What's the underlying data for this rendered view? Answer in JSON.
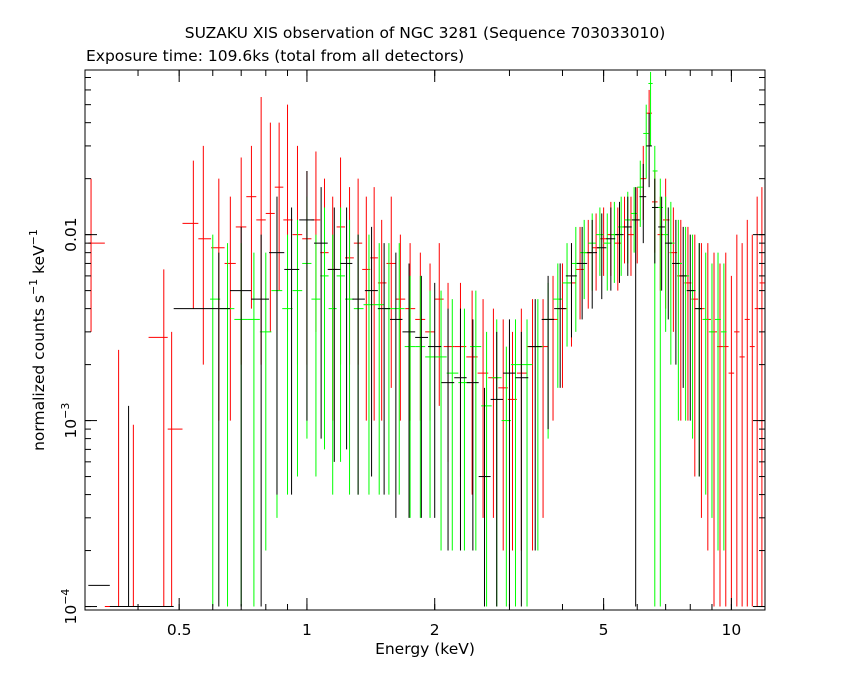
{
  "chart_data": {
    "type": "scatter",
    "title": "SUZAKU XIS observation of NGC 3281 (Sequence 703033010)",
    "subtitle": "Exposure time: 109.6ks (total from all detectors)",
    "xlabel": "Energy (keV)",
    "ylabel_main": "normalized counts s",
    "ylabel_exp1": "−1",
    "ylabel_mid": " keV",
    "ylabel_exp2": "−1",
    "x_scale": "log",
    "y_scale": "log",
    "xlim": [
      0.3,
      12.0
    ],
    "ylim": [
      9.58e-05,
      0.0768
    ],
    "x_ticks": [
      {
        "value": 0.5,
        "label": "0.5"
      },
      {
        "value": 1,
        "label": "1"
      },
      {
        "value": 2,
        "label": "2"
      },
      {
        "value": 5,
        "label": "5"
      },
      {
        "value": 10,
        "label": "10"
      }
    ],
    "y_ticks": [
      {
        "value": 0.0001,
        "base": "10",
        "exp": "−4",
        "label": ""
      },
      {
        "value": 0.001,
        "base": "10",
        "exp": "−3",
        "label": ""
      },
      {
        "value": 0.01,
        "base": "",
        "exp": "",
        "label": "0.01"
      }
    ],
    "grid": false,
    "legend": "none",
    "series": [
      {
        "color": "#ff0000",
        "points": [
          [
            0.31,
            0.009,
            0.02,
            0.003
          ],
          [
            0.36,
            0.0001,
            0.0024,
            0.0001
          ],
          [
            0.39,
            0.0001,
            0.00095,
            0.0001
          ],
          [
            0.46,
            0.0028,
            0.0065,
            0.0001
          ],
          [
            0.48,
            0.0009,
            0.003,
            0.0001
          ],
          [
            0.54,
            0.0115,
            0.025,
            0.004
          ],
          [
            0.57,
            0.0095,
            0.03,
            0.002
          ],
          [
            0.62,
            0.0085,
            0.02,
            0.001
          ],
          [
            0.66,
            0.007,
            0.016,
            0.001
          ],
          [
            0.7,
            0.011,
            0.026,
            0.002
          ],
          [
            0.74,
            0.016,
            0.03,
            0.004
          ],
          [
            0.78,
            0.012,
            0.055,
            0.002
          ],
          [
            0.82,
            0.013,
            0.04,
            0.003
          ],
          [
            0.86,
            0.018,
            0.04,
            0.005
          ],
          [
            0.9,
            0.012,
            0.05,
            0.003
          ],
          [
            0.95,
            0.01,
            0.03,
            0.002
          ],
          [
            1.0,
            0.0095,
            0.022,
            0.002
          ],
          [
            1.05,
            0.012,
            0.028,
            0.003
          ],
          [
            1.1,
            0.008,
            0.02,
            0.002
          ],
          [
            1.15,
            0.0065,
            0.016,
            0.001
          ],
          [
            1.2,
            0.011,
            0.026,
            0.002
          ],
          [
            1.26,
            0.0075,
            0.018,
            0.002
          ],
          [
            1.32,
            0.009,
            0.02,
            0.002
          ],
          [
            1.38,
            0.0065,
            0.016,
            0.001
          ],
          [
            1.44,
            0.0075,
            0.018,
            0.001
          ],
          [
            1.5,
            0.0055,
            0.012,
            0.001
          ],
          [
            1.58,
            0.007,
            0.016,
            0.0015
          ],
          [
            1.66,
            0.0045,
            0.01,
            0.001
          ],
          [
            1.75,
            0.004,
            0.009,
            0.001
          ],
          [
            1.85,
            0.0035,
            0.008,
            0.001
          ],
          [
            1.95,
            0.003,
            0.007,
            0.001
          ],
          [
            2.05,
            0.0045,
            0.009,
            0.0012
          ],
          [
            2.15,
            0.0025,
            0.0055,
            0.0006
          ],
          [
            2.3,
            0.0025,
            0.0055,
            0.0005
          ],
          [
            2.45,
            0.0022,
            0.005,
            0.0004
          ],
          [
            2.6,
            0.0018,
            0.0045,
            0.0003
          ],
          [
            2.75,
            0.0017,
            0.004,
            0.0003
          ],
          [
            2.9,
            0.0015,
            0.0035,
            0.0002
          ],
          [
            3.05,
            0.0013,
            0.003,
            0.0002
          ],
          [
            3.2,
            0.0018,
            0.004,
            0.0002
          ],
          [
            3.4,
            0.0025,
            0.0045,
            0.0002
          ],
          [
            3.6,
            0.0025,
            0.0045,
            0.0003
          ],
          [
            3.8,
            0.0035,
            0.006,
            0.001
          ],
          [
            4.0,
            0.004,
            0.007,
            0.0015
          ],
          [
            4.2,
            0.0055,
            0.009,
            0.0025
          ],
          [
            4.4,
            0.0065,
            0.011,
            0.0035
          ],
          [
            4.6,
            0.008,
            0.012,
            0.004
          ],
          [
            4.8,
            0.0085,
            0.013,
            0.005
          ],
          [
            5.0,
            0.0095,
            0.014,
            0.006
          ],
          [
            5.2,
            0.01,
            0.015,
            0.006
          ],
          [
            5.4,
            0.009,
            0.014,
            0.005
          ],
          [
            5.6,
            0.011,
            0.016,
            0.007
          ],
          [
            5.8,
            0.01,
            0.016,
            0.006
          ],
          [
            6.0,
            0.012,
            0.018,
            0.007
          ],
          [
            6.2,
            0.02,
            0.03,
            0.012
          ],
          [
            6.4,
            0.045,
            0.06,
            0.03
          ],
          [
            6.6,
            0.015,
            0.022,
            0.008
          ],
          [
            6.8,
            0.01,
            0.016,
            0.005
          ],
          [
            7.0,
            0.012,
            0.02,
            0.004
          ],
          [
            7.3,
            0.008,
            0.014,
            0.003
          ],
          [
            7.6,
            0.006,
            0.012,
            0.001
          ],
          [
            7.9,
            0.0055,
            0.011,
            0.001
          ],
          [
            8.2,
            0.0045,
            0.01,
            0.0005
          ],
          [
            8.5,
            0.004,
            0.009,
            0.0003
          ],
          [
            8.8,
            0.0035,
            0.009,
            0.0002
          ],
          [
            9.1,
            0.003,
            0.008,
            0.0001
          ],
          [
            9.4,
            0.0025,
            0.007,
            0.0001
          ],
          [
            9.7,
            0.0025,
            0.008,
            0.0001
          ],
          [
            10.0,
            0.0018,
            0.006,
            0.0001
          ],
          [
            10.3,
            0.003,
            0.01,
            0.0001
          ],
          [
            10.6,
            0.0022,
            0.009,
            0.0001
          ],
          [
            10.9,
            0.0035,
            0.012,
            0.0001
          ],
          [
            11.2,
            0.0025,
            0.01,
            0.0001
          ],
          [
            11.5,
            0.004,
            0.016,
            0.0001
          ],
          [
            11.8,
            0.0055,
            0.018,
            0.0001
          ]
        ]
      },
      {
        "color": "#00ff00",
        "points": [
          [
            0.6,
            0.0045,
            0.01,
            0.0001
          ],
          [
            0.65,
            0.004,
            0.009,
            0.0001
          ],
          [
            0.7,
            0.0035,
            0.009,
            0.0001
          ],
          [
            0.75,
            0.0035,
            0.008,
            0.0001
          ],
          [
            0.8,
            0.003,
            0.008,
            0.0002
          ],
          [
            0.85,
            0.005,
            0.012,
            0.0003
          ],
          [
            0.9,
            0.004,
            0.01,
            0.0004
          ],
          [
            0.95,
            0.005,
            0.012,
            0.0005
          ],
          [
            1.0,
            0.007,
            0.016,
            0.0008
          ],
          [
            1.05,
            0.0045,
            0.01,
            0.0005
          ],
          [
            1.1,
            0.006,
            0.014,
            0.0007
          ],
          [
            1.15,
            0.004,
            0.01,
            0.0004
          ],
          [
            1.2,
            0.006,
            0.014,
            0.0006
          ],
          [
            1.26,
            0.0045,
            0.012,
            0.0004
          ],
          [
            1.32,
            0.004,
            0.01,
            0.0004
          ],
          [
            1.4,
            0.0042,
            0.01,
            0.0004
          ],
          [
            1.48,
            0.0042,
            0.009,
            0.0004
          ],
          [
            1.56,
            0.004,
            0.009,
            0.0004
          ],
          [
            1.65,
            0.004,
            0.009,
            0.0004
          ],
          [
            1.75,
            0.0025,
            0.006,
            0.0003
          ],
          [
            1.85,
            0.0025,
            0.006,
            0.0003
          ],
          [
            1.95,
            0.0022,
            0.005,
            0.0003
          ],
          [
            2.07,
            0.0022,
            0.005,
            0.0002
          ],
          [
            2.2,
            0.0018,
            0.0045,
            0.0002
          ],
          [
            2.35,
            0.0016,
            0.004,
            0.0002
          ],
          [
            2.5,
            0.0025,
            0.005,
            0.0002
          ],
          [
            2.65,
            0.0012,
            0.003,
            0.0001
          ],
          [
            2.8,
            0.0017,
            0.0035,
            0.0001
          ],
          [
            2.95,
            0.001,
            0.0025,
            0.0001
          ],
          [
            3.1,
            0.002,
            0.0035,
            0.0001
          ],
          [
            3.3,
            0.002,
            0.0035,
            0.0001
          ],
          [
            3.5,
            0.0025,
            0.0045,
            0.0002
          ],
          [
            3.7,
            0.0035,
            0.0055,
            0.0008
          ],
          [
            3.9,
            0.0045,
            0.007,
            0.0015
          ],
          [
            4.1,
            0.0055,
            0.009,
            0.0025
          ],
          [
            4.3,
            0.007,
            0.011,
            0.003
          ],
          [
            4.5,
            0.008,
            0.012,
            0.0045
          ],
          [
            4.7,
            0.009,
            0.013,
            0.005
          ],
          [
            4.9,
            0.01,
            0.014,
            0.006
          ],
          [
            5.1,
            0.009,
            0.013,
            0.005
          ],
          [
            5.3,
            0.01,
            0.015,
            0.0055
          ],
          [
            5.5,
            0.011,
            0.016,
            0.006
          ],
          [
            5.7,
            0.012,
            0.017,
            0.007
          ],
          [
            5.9,
            0.013,
            0.018,
            0.008
          ],
          [
            6.1,
            0.018,
            0.025,
            0.011
          ],
          [
            6.3,
            0.035,
            0.05,
            0.02
          ],
          [
            6.45,
            0.065,
            0.075,
            0.03
          ],
          [
            6.6,
            0.022,
            0.03,
            0.0001
          ],
          [
            6.8,
            0.014,
            0.02,
            0.0001
          ],
          [
            7.0,
            0.01,
            0.016,
            0.003
          ],
          [
            7.2,
            0.009,
            0.015,
            0.002
          ],
          [
            7.5,
            0.007,
            0.012,
            0.001
          ],
          [
            7.8,
            0.006,
            0.011,
            0.001
          ],
          [
            8.1,
            0.005,
            0.01,
            0.0008
          ],
          [
            8.4,
            0.004,
            0.009,
            0.0005
          ],
          [
            8.7,
            0.0035,
            0.008,
            0.0004
          ],
          [
            9.0,
            0.003,
            0.007,
            0.0003
          ],
          [
            9.3,
            0.0035,
            0.008,
            0.0002
          ],
          [
            9.6,
            0.003,
            0.007,
            0.0002
          ]
        ]
      },
      {
        "color": "#000000",
        "points": [
          [
            0.31,
            0.00013,
            0.00013,
            0.00013
          ],
          [
            0.38,
            0.0001,
            0.0012,
            0.0001
          ],
          [
            0.62,
            0.004,
            0.008,
            0.0001
          ],
          [
            0.7,
            0.005,
            0.011,
            0.0001
          ],
          [
            0.78,
            0.0045,
            0.01,
            0.0001
          ],
          [
            0.85,
            0.008,
            0.016,
            0.0004
          ],
          [
            0.92,
            0.0065,
            0.014,
            0.0004
          ],
          [
            1.0,
            0.012,
            0.022,
            0.001
          ],
          [
            1.08,
            0.009,
            0.018,
            0.0008
          ],
          [
            1.16,
            0.0065,
            0.014,
            0.0006
          ],
          [
            1.24,
            0.007,
            0.014,
            0.0007
          ],
          [
            1.32,
            0.0045,
            0.01,
            0.0004
          ],
          [
            1.42,
            0.005,
            0.011,
            0.0005
          ],
          [
            1.52,
            0.004,
            0.009,
            0.0004
          ],
          [
            1.62,
            0.0035,
            0.008,
            0.0003
          ],
          [
            1.74,
            0.003,
            0.007,
            0.0003
          ],
          [
            1.86,
            0.0028,
            0.006,
            0.0003
          ],
          [
            2.0,
            0.0025,
            0.0055,
            0.0003
          ],
          [
            2.15,
            0.0016,
            0.004,
            0.0002
          ],
          [
            2.3,
            0.0017,
            0.004,
            0.0002
          ],
          [
            2.46,
            0.0016,
            0.0035,
            0.0002
          ],
          [
            2.62,
            0.0005,
            0.0015,
            0.0001
          ],
          [
            2.8,
            0.0013,
            0.003,
            0.0001
          ],
          [
            3.0,
            0.0018,
            0.0035,
            0.0001
          ],
          [
            3.2,
            0.0017,
            0.003,
            0.0001
          ],
          [
            3.45,
            0.0025,
            0.0045,
            0.0002
          ],
          [
            3.7,
            0.0035,
            0.006,
            0.0009
          ],
          [
            3.95,
            0.004,
            0.007,
            0.0015
          ],
          [
            4.2,
            0.006,
            0.009,
            0.0028
          ],
          [
            4.45,
            0.007,
            0.011,
            0.0035
          ],
          [
            4.7,
            0.008,
            0.012,
            0.004
          ],
          [
            4.95,
            0.0085,
            0.013,
            0.0045
          ],
          [
            5.2,
            0.0095,
            0.014,
            0.005
          ],
          [
            5.45,
            0.01,
            0.015,
            0.0055
          ],
          [
            5.7,
            0.011,
            0.016,
            0.006
          ],
          [
            5.95,
            0.012,
            0.018,
            0.0001
          ],
          [
            6.2,
            0.016,
            0.024,
            0.009
          ],
          [
            6.4,
            0.03,
            0.045,
            0.018
          ],
          [
            6.6,
            0.014,
            0.02,
            0.007
          ],
          [
            6.85,
            0.011,
            0.016,
            0.005
          ],
          [
            7.1,
            0.009,
            0.014,
            0.0035
          ],
          [
            7.4,
            0.007,
            0.012,
            0.002
          ],
          [
            7.7,
            0.006,
            0.011,
            0.0015
          ],
          [
            8.0,
            0.005,
            0.01,
            0.001
          ],
          [
            8.4,
            0.004,
            0.009,
            0.0005
          ]
        ]
      }
    ]
  }
}
